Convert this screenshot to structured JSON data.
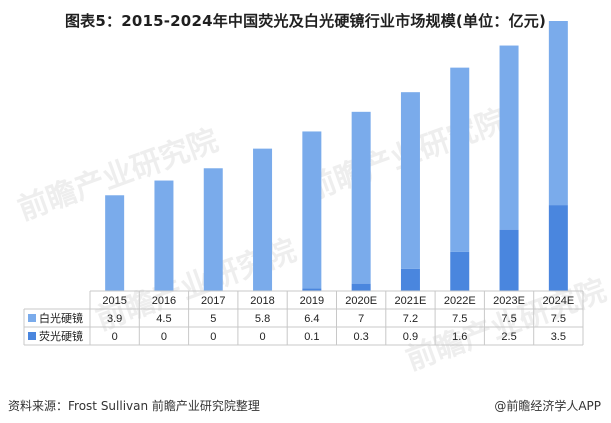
{
  "title": "图表5：2015-2024年中国荧光及白光硬镜行业市场规模(单位：亿元)",
  "watermark": "前瞻产业研究院",
  "source": "资料来源：Frost Sullivan 前瞻产业研究院整理",
  "brand": "@前瞻经济学人APP",
  "colors": {
    "white_light": "#7aabeb",
    "fluorescent": "#4a86de",
    "grid": "#c8c8c8"
  },
  "chart_data": {
    "type": "bar",
    "stacked": true,
    "categories": [
      "2015",
      "2016",
      "2017",
      "2018",
      "2019",
      "2020E",
      "2021E",
      "2022E",
      "2023E",
      "2024E"
    ],
    "series": [
      {
        "name": "白光硬镜",
        "values": [
          3.9,
          4.5,
          5,
          5.8,
          6.4,
          7,
          7.2,
          7.5,
          7.5,
          7.5
        ],
        "labels": [
          "3.9",
          "4.5",
          "5",
          "5.8",
          "6.4",
          "7",
          "7.2",
          "7.5",
          "7.5",
          "7.5"
        ]
      },
      {
        "name": "荧光硬镜",
        "values": [
          0,
          0,
          0,
          0,
          0.1,
          0.3,
          0.9,
          1.6,
          2.5,
          3.5
        ],
        "labels": [
          "0",
          "0",
          "0",
          "0",
          "0.1",
          "0.3",
          "0.9",
          "1.6",
          "2.5",
          "3.5"
        ]
      }
    ],
    "ylim": [
      0,
      11
    ],
    "legend": "data-table",
    "grid": false
  }
}
